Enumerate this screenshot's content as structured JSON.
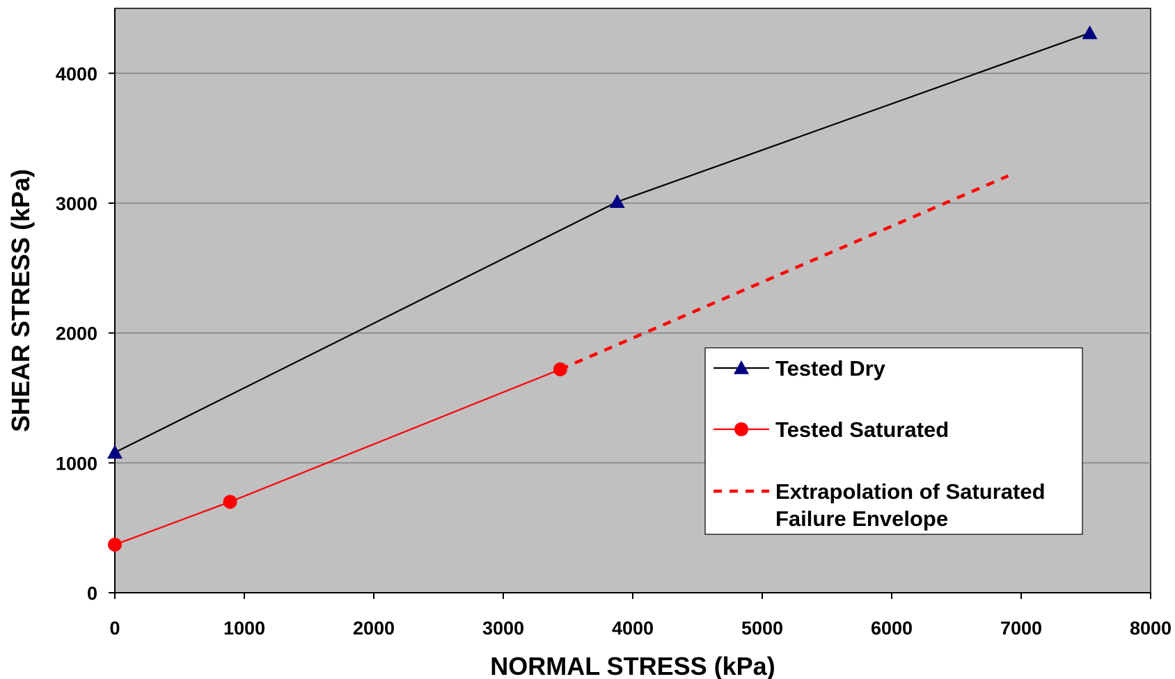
{
  "chart_data": {
    "type": "line",
    "title": "",
    "xlabel": "NORMAL STRESS (kPa)",
    "ylabel": "SHEAR STRESS (kPa)",
    "xlim": [
      0,
      8000
    ],
    "ylim": [
      0,
      4500
    ],
    "x_ticks": [
      0,
      1000,
      2000,
      3000,
      4000,
      5000,
      6000,
      7000,
      8000
    ],
    "y_ticks": [
      0,
      1000,
      2000,
      3000,
      4000
    ],
    "grid": {
      "horizontal": true,
      "vertical": false
    },
    "plot_background": "#c0c0c0",
    "legend_position": "right-center",
    "series": [
      {
        "name": "Tested Dry",
        "color": "#000000",
        "marker": "triangle",
        "marker_color": "#000080",
        "line_style": "solid",
        "points": [
          [
            0,
            1080
          ],
          [
            3880,
            3010
          ],
          [
            7530,
            4310
          ]
        ]
      },
      {
        "name": "Tested Saturated",
        "color": "#ff0000",
        "marker": "circle",
        "marker_color": "#ff0000",
        "line_style": "solid",
        "points": [
          [
            0,
            370
          ],
          [
            890,
            700
          ],
          [
            3440,
            1720
          ]
        ]
      },
      {
        "name": "Extrapolation of Saturated Failure Envelope",
        "legend_lines": [
          "Extrapolation of Saturated",
          "Failure Envelope"
        ],
        "color": "#ff0000",
        "marker": "none",
        "line_style": "dashed",
        "points": [
          [
            3440,
            1720
          ],
          [
            6900,
            3210
          ]
        ]
      }
    ]
  }
}
